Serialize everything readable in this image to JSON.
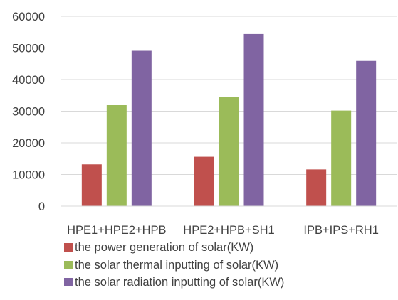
{
  "chart_data": {
    "type": "bar",
    "title": "",
    "xlabel": "",
    "ylabel": "",
    "ylim": [
      0,
      60000
    ],
    "yticks": [
      "0",
      "10000",
      "20000",
      "30000",
      "40000",
      "50000",
      "60000"
    ],
    "grid": true,
    "legend_position": "bottom",
    "categories": [
      "HPE1+HPE2+HPB",
      "HPE2+HPB+SH1",
      "IPB+IPS+RH1"
    ],
    "series": [
      {
        "name": "the power generation of solar(KW)",
        "color": "#c0504d",
        "values": [
          13200,
          15600,
          11600
        ]
      },
      {
        "name": "the solar thermal inputting of solar(KW)",
        "color": "#9bbb59",
        "values": [
          32000,
          34400,
          30200
        ]
      },
      {
        "name": "the solar radiation inputting of solar(KW)",
        "color": "#8064a2",
        "values": [
          49100,
          54400,
          45900
        ]
      }
    ]
  }
}
